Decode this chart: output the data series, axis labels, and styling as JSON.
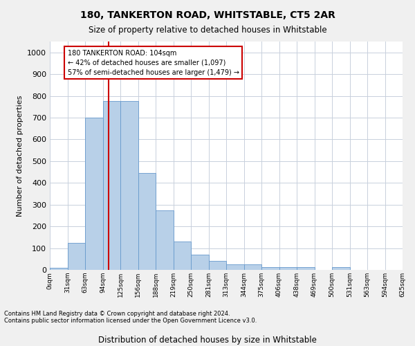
{
  "title": "180, TANKERTON ROAD, WHITSTABLE, CT5 2AR",
  "subtitle": "Size of property relative to detached houses in Whitstable",
  "xlabel": "Distribution of detached houses by size in Whitstable",
  "ylabel": "Number of detached properties",
  "bar_color": "#b8d0e8",
  "bar_edge_color": "#6699cc",
  "grid_color": "#c8d0dc",
  "annotation_box_color": "#cc0000",
  "annotation_line1": "180 TANKERTON ROAD: 104sqm",
  "annotation_line2": "← 42% of detached houses are smaller (1,097)",
  "annotation_line3": "57% of semi-detached houses are larger (1,479) →",
  "vline_color": "#cc0000",
  "vline_bin_index": 3,
  "footer_line1": "Contains HM Land Registry data © Crown copyright and database right 2024.",
  "footer_line2": "Contains public sector information licensed under the Open Government Licence v3.0.",
  "bin_labels": [
    "0sqm",
    "31sqm",
    "63sqm",
    "94sqm",
    "125sqm",
    "156sqm",
    "188sqm",
    "219sqm",
    "250sqm",
    "281sqm",
    "313sqm",
    "344sqm",
    "375sqm",
    "406sqm",
    "438sqm",
    "469sqm",
    "500sqm",
    "531sqm",
    "563sqm",
    "594sqm",
    "625sqm"
  ],
  "bar_heights": [
    8,
    125,
    700,
    775,
    775,
    445,
    275,
    130,
    70,
    40,
    25,
    25,
    12,
    12,
    12,
    0,
    12,
    0,
    0,
    0
  ],
  "ylim": [
    0,
    1050
  ],
  "yticks": [
    0,
    100,
    200,
    300,
    400,
    500,
    600,
    700,
    800,
    900,
    1000
  ],
  "bg_color": "#f0f0f0",
  "plot_bg_color": "#ffffff",
  "n_bins": 20,
  "n_labels": 21
}
